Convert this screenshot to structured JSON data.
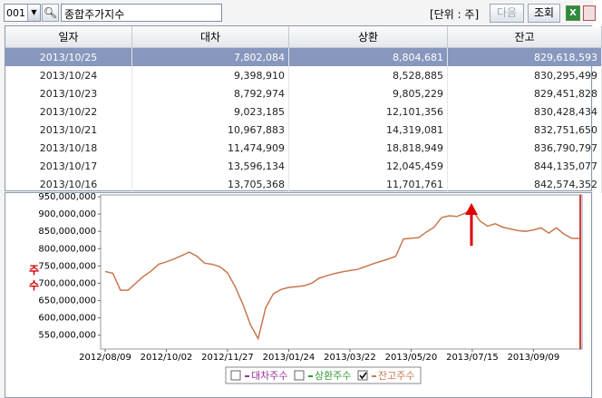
{
  "toolbar": {
    "code": "001",
    "search_text": "종합주가지수",
    "unit": "[단위 : 주]",
    "buttons": [
      "다음",
      "조회"
    ]
  },
  "table": {
    "headers": [
      "일자",
      "대차",
      "상환",
      "잔고"
    ],
    "selected_row": 0,
    "rows": [
      [
        "2013/10/25",
        "7,802,084",
        "8,804,681",
        "829,618,593"
      ],
      [
        "2013/10/24",
        "9,398,910",
        "8,528,885",
        "830,295,499"
      ],
      [
        "2013/10/23",
        "8,792,974",
        "9,805,229",
        "829,451,828"
      ],
      [
        "2013/10/22",
        "9,023,185",
        "12,101,356",
        "830,428,434"
      ],
      [
        "2013/10/21",
        "10,967,883",
        "14,319,081",
        "832,751,650"
      ],
      [
        "2013/10/18",
        "11,474,909",
        "18,818,949",
        "836,790,797"
      ],
      [
        "2013/10/17",
        "13,596,134",
        "12,045,459",
        "844,135,077"
      ],
      [
        "2013/10/16",
        "13,705,368",
        "11,701,761",
        "842,574,352"
      ]
    ]
  },
  "chart_data": {
    "type": "line",
    "y_label": "주수",
    "categories": [
      "2012/08/09",
      null,
      null,
      null,
      null,
      null,
      null,
      null,
      "2012/10/02",
      null,
      null,
      null,
      null,
      null,
      null,
      null,
      "2012/11/27",
      null,
      null,
      null,
      null,
      null,
      null,
      null,
      "2013/01/24",
      null,
      null,
      null,
      null,
      null,
      null,
      null,
      "2013/03/22",
      null,
      null,
      null,
      null,
      null,
      null,
      null,
      "2013/05/20",
      null,
      null,
      null,
      null,
      null,
      null,
      null,
      "2013/07/15",
      null,
      null,
      null,
      null,
      null,
      null,
      null,
      "2013/09/09",
      null,
      null,
      null,
      null,
      null,
      null
    ],
    "series": [
      {
        "name": "잔고주수",
        "color": "#c8784f",
        "checked": true,
        "values": [
          734000000,
          729000000,
          680000000,
          680000000,
          700000000,
          720000000,
          735000000,
          755000000,
          762000000,
          770000000,
          780000000,
          790000000,
          778000000,
          758000000,
          755000000,
          748000000,
          730000000,
          690000000,
          640000000,
          580000000,
          540000000,
          630000000,
          670000000,
          682000000,
          688000000,
          690000000,
          693000000,
          700000000,
          715000000,
          722000000,
          728000000,
          733000000,
          737000000,
          740000000,
          748000000,
          756000000,
          763000000,
          770000000,
          778000000,
          828000000,
          830000000,
          832000000,
          848000000,
          862000000,
          890000000,
          895000000,
          893000000,
          902000000,
          912000000,
          880000000,
          865000000,
          872000000,
          862000000,
          857000000,
          852000000,
          850000000,
          854000000,
          860000000,
          845000000,
          860000000,
          842000000,
          830000000,
          829618593
        ]
      }
    ],
    "legend": [
      {
        "name": "대차주수",
        "color": "#993399",
        "checked": false
      },
      {
        "name": "상환주수",
        "color": "#339933",
        "checked": false
      }
    ],
    "ylim": [
      510000000,
      950000000
    ],
    "yticks": [
      {
        "value": 550000000,
        "label": "550,000,000"
      },
      {
        "value": 600000000,
        "label": "600,000,000"
      },
      {
        "value": 650000000,
        "label": "650,000,000"
      },
      {
        "value": 700000000,
        "label": "700,000,000"
      },
      {
        "value": 750000000,
        "label": "750,000,000"
      },
      {
        "value": 800000000,
        "label": "800,000,000"
      },
      {
        "value": 850000000,
        "label": "850,000,000"
      },
      {
        "value": 900000000,
        "label": "900,000,000"
      },
      {
        "value": 950000000,
        "label": "950,000,000"
      }
    ],
    "grid": false
  }
}
